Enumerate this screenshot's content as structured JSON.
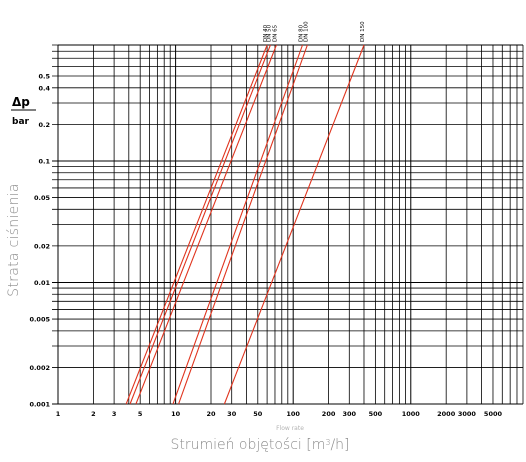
{
  "chart_data": {
    "type": "line",
    "xscale": "log",
    "yscale": "log",
    "xlim": [
      1,
      9000
    ],
    "ylim": [
      0.001,
      0.9
    ],
    "x_ticks": [
      "1",
      "2",
      "3",
      "5",
      "10",
      "20",
      "30",
      "50",
      "100",
      "200",
      "300",
      "500",
      "1000",
      "2000",
      "3000",
      "5000"
    ],
    "y_ticks": [
      "0.001",
      "0.002",
      "0.005",
      "0.01",
      "0.02",
      "0.05",
      "0.1",
      "0.2",
      "0.4",
      "0.5"
    ],
    "axis_symbol": "Δp",
    "axis_unit": "bar",
    "ylabel": "Strata ciśnienia",
    "xlabel_pre": "Strumień objętości [m",
    "xlabel_sup": "3",
    "xlabel_post": "/h]",
    "x_caption": "Flow rate",
    "grid": true,
    "colors": {
      "grid": "#000000",
      "series": "#e0341e",
      "series_dark": "#7a1a10"
    },
    "series": [
      {
        "name": "DN 40",
        "points": [
          [
            3.8,
            0.001
          ],
          [
            60,
            0.9
          ]
        ]
      },
      {
        "name": "DN 50",
        "points": [
          [
            4.1,
            0.001
          ],
          [
            64,
            0.9
          ]
        ]
      },
      {
        "name": "DN 65",
        "points": [
          [
            4.6,
            0.001
          ],
          [
            72,
            0.9
          ]
        ]
      },
      {
        "name": "DN 80",
        "points": [
          [
            9.5,
            0.001
          ],
          [
            120,
            0.9
          ]
        ]
      },
      {
        "name": "DN 100",
        "points": [
          [
            10.6,
            0.001
          ],
          [
            132,
            0.9
          ]
        ]
      },
      {
        "name": "DN 150",
        "points": [
          [
            26,
            0.001
          ],
          [
            400,
            0.9
          ]
        ]
      }
    ]
  }
}
